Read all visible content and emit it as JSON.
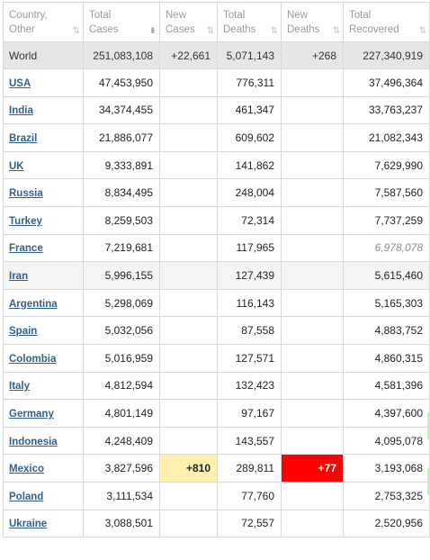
{
  "columns": [
    {
      "line1": "Country,",
      "line2": "Other",
      "sort": "⇅",
      "active": false
    },
    {
      "line1": "Total",
      "line2": "Cases",
      "sort": "⇟",
      "active": true
    },
    {
      "line1": "New",
      "line2": "Cases",
      "sort": "⇅",
      "active": false
    },
    {
      "line1": "Total",
      "line2": "Deaths",
      "sort": "⇅",
      "active": false
    },
    {
      "line1": "New",
      "line2": "Deaths",
      "sort": "⇅",
      "active": false
    },
    {
      "line1": "Total",
      "line2": "Recovered",
      "sort": "⇅",
      "active": false
    }
  ],
  "world": {
    "country": "World",
    "total_cases": "251,083,108",
    "new_cases": "+22,661",
    "total_deaths": "5,071,143",
    "new_deaths": "+268",
    "total_recovered": "227,340,919"
  },
  "rows": [
    {
      "country": "USA",
      "total_cases": "47,453,950",
      "new_cases": "",
      "total_deaths": "776,311",
      "new_deaths": "",
      "total_recovered": "37,496,364"
    },
    {
      "country": "India",
      "total_cases": "34,374,455",
      "new_cases": "",
      "total_deaths": "461,347",
      "new_deaths": "",
      "total_recovered": "33,763,237"
    },
    {
      "country": "Brazil",
      "total_cases": "21,886,077",
      "new_cases": "",
      "total_deaths": "609,602",
      "new_deaths": "",
      "total_recovered": "21,082,343"
    },
    {
      "country": "UK",
      "total_cases": "9,333,891",
      "new_cases": "",
      "total_deaths": "141,862",
      "new_deaths": "",
      "total_recovered": "7,629,990"
    },
    {
      "country": "Russia",
      "total_cases": "8,834,495",
      "new_cases": "",
      "total_deaths": "248,004",
      "new_deaths": "",
      "total_recovered": "7,587,560"
    },
    {
      "country": "Turkey",
      "total_cases": "8,259,503",
      "new_cases": "",
      "total_deaths": "72,314",
      "new_deaths": "",
      "total_recovered": "7,737,259"
    },
    {
      "country": "France",
      "total_cases": "7,219,681",
      "new_cases": "",
      "total_deaths": "117,965",
      "new_deaths": "",
      "total_recovered": "6,978,078"
    },
    {
      "country": "Iran",
      "total_cases": "5,996,155",
      "new_cases": "",
      "total_deaths": "127,439",
      "new_deaths": "",
      "total_recovered": "5,615,460"
    },
    {
      "country": "Argentina",
      "total_cases": "5,298,069",
      "new_cases": "",
      "total_deaths": "116,143",
      "new_deaths": "",
      "total_recovered": "5,165,303"
    },
    {
      "country": "Spain",
      "total_cases": "5,032,056",
      "new_cases": "",
      "total_deaths": "87,558",
      "new_deaths": "",
      "total_recovered": "4,883,752"
    },
    {
      "country": "Colombia",
      "total_cases": "5,016,959",
      "new_cases": "",
      "total_deaths": "127,571",
      "new_deaths": "",
      "total_recovered": "4,860,315"
    },
    {
      "country": "Italy",
      "total_cases": "4,812,594",
      "new_cases": "",
      "total_deaths": "132,423",
      "new_deaths": "",
      "total_recovered": "4,581,396"
    },
    {
      "country": "Germany",
      "total_cases": "4,801,149",
      "new_cases": "",
      "total_deaths": "97,167",
      "new_deaths": "",
      "total_recovered": "4,397,600"
    },
    {
      "country": "Indonesia",
      "total_cases": "4,248,409",
      "new_cases": "",
      "total_deaths": "143,557",
      "new_deaths": "",
      "total_recovered": "4,095,078"
    },
    {
      "country": "Mexico",
      "total_cases": "3,827,596",
      "new_cases": "+810",
      "total_deaths": "289,811",
      "new_deaths": "+77",
      "total_recovered": "3,193,068"
    },
    {
      "country": "Poland",
      "total_cases": "3,111,534",
      "new_cases": "",
      "total_deaths": "77,760",
      "new_deaths": "",
      "total_recovered": "2,753,325"
    },
    {
      "country": "Ukraine",
      "total_cases": "3,088,501",
      "new_cases": "",
      "total_deaths": "72,557",
      "new_deaths": "",
      "total_recovered": "2,520,956"
    }
  ],
  "colors": {
    "new_cases_highlight": "#fff0b0",
    "new_deaths_highlight": "#ff0000",
    "world_row": "#e6e6e6",
    "link": "#335f8f"
  }
}
